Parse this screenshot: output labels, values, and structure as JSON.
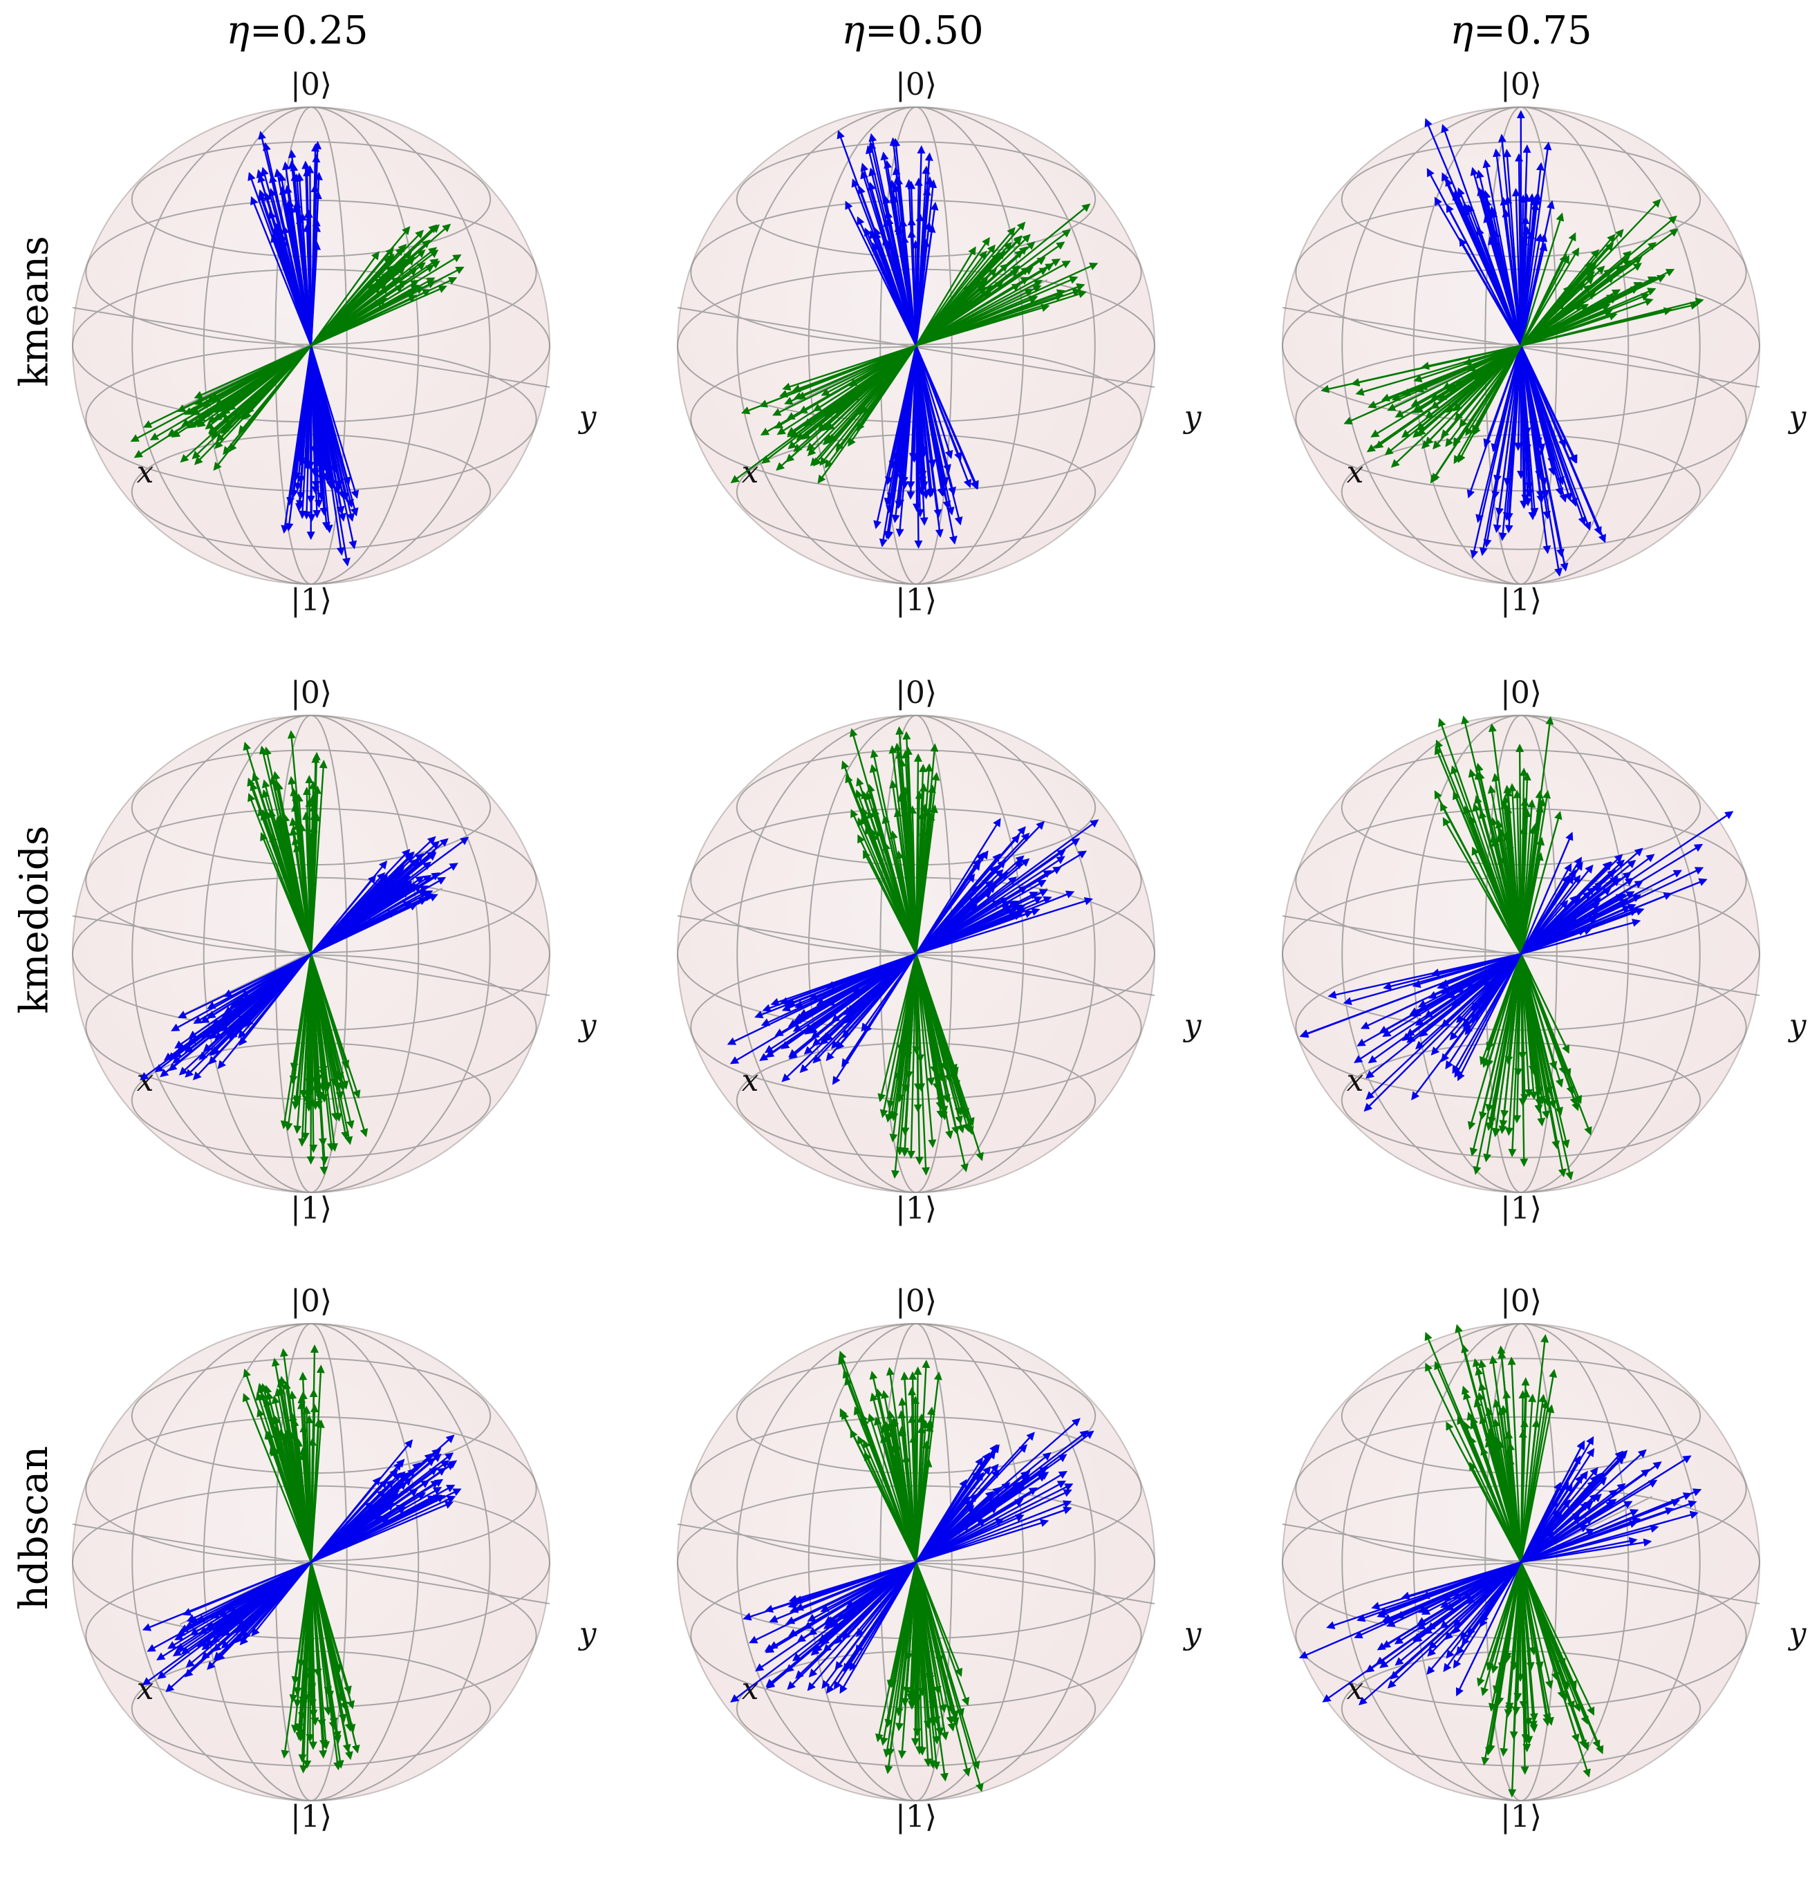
{
  "columns": [
    {
      "eta_symbol": "η",
      "eta_value": "=0.25"
    },
    {
      "eta_symbol": "η",
      "eta_value": "=0.50"
    },
    {
      "eta_symbol": "η",
      "eta_value": "=0.75"
    }
  ],
  "rows": [
    {
      "label": "kmeans",
      "upper_color": "blue",
      "side_color": "green"
    },
    {
      "label": "kmedoids",
      "upper_color": "green",
      "side_color": "blue"
    },
    {
      "label": "hdbscan",
      "upper_color": "green",
      "side_color": "blue"
    }
  ],
  "sphere_labels": {
    "top": "|0⟩",
    "bottom": "|1⟩",
    "x": "x",
    "y": "y"
  },
  "colors": {
    "blue": "#0000ee",
    "green": "#007a00",
    "sphere": "#f3e6e6",
    "wire": "#888888"
  }
}
